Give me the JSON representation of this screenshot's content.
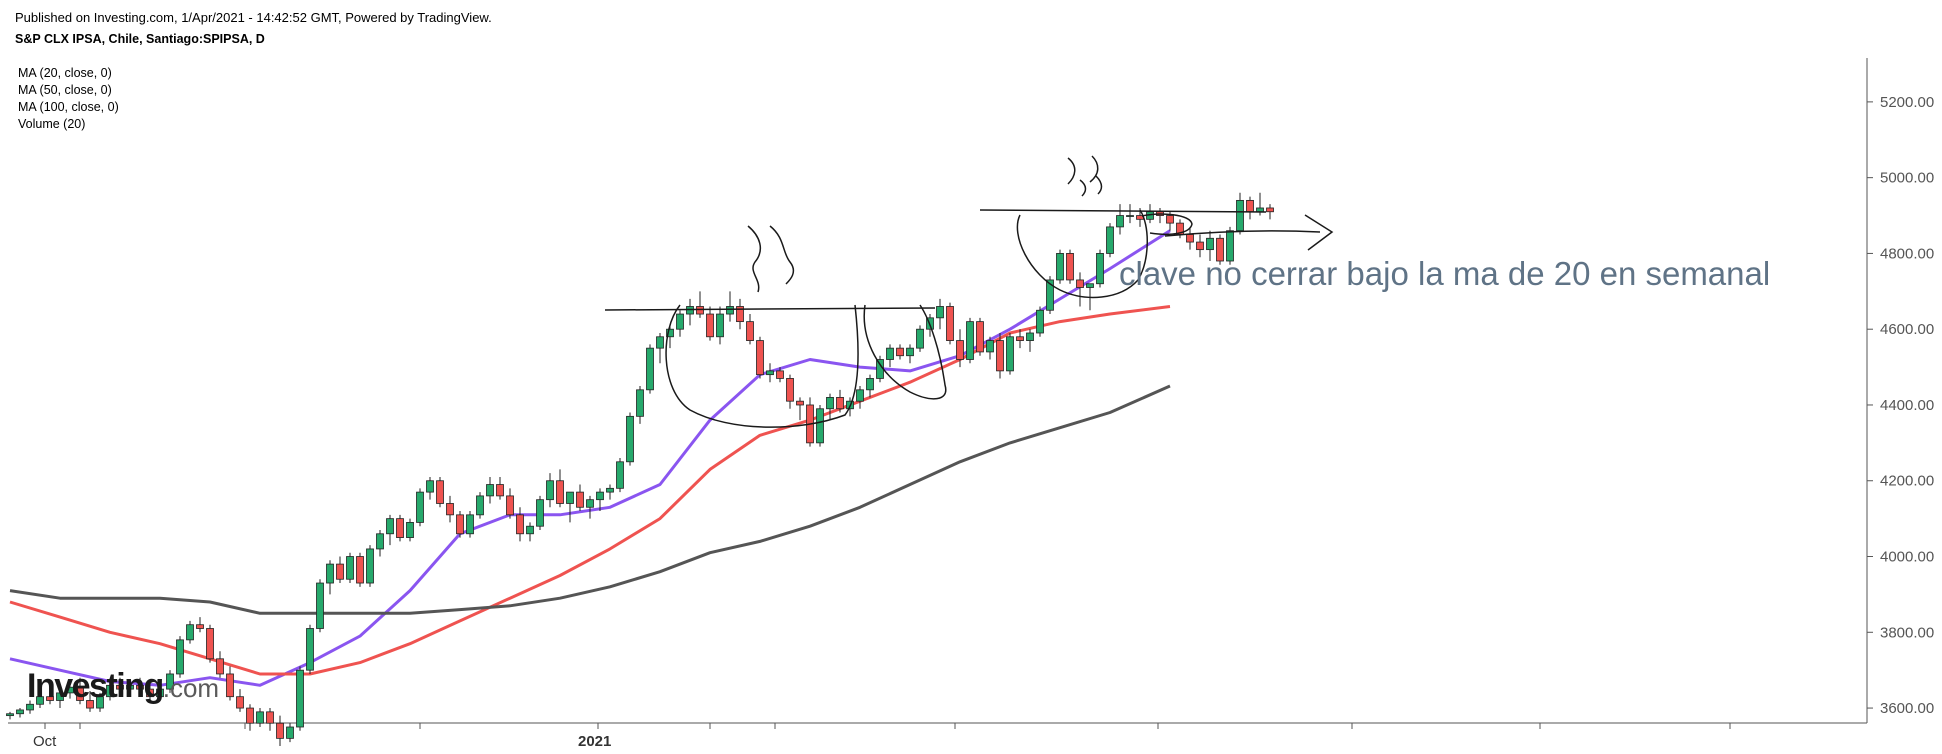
{
  "header": {
    "published": "Published on Investing.com, 1/Apr/2021 - 14:42:52 GMT, Powered by TradingView.",
    "symbol": "S&P CLX IPSA, Chile, Santiago:SPIPSA, D"
  },
  "legend": [
    "MA (20, close, 0)",
    "MA (50, close, 0)",
    "MA (100, close, 0)",
    "Volume (20)"
  ],
  "annotation_text": "clave no cerrar bajo la ma de 20 en semanal",
  "watermark": {
    "brand": "Investing",
    "suffix": ".com"
  },
  "colors": {
    "up": "#26a96c",
    "down": "#ef5350",
    "ma20": "#8a55f0",
    "ma50": "#ef5350",
    "ma100": "#555555",
    "annotation": "#5f7386"
  },
  "chart_data": {
    "type": "candlestick",
    "title": "S&P CLX IPSA, Chile, Santiago:SPIPSA, D",
    "ylim": [
      3550,
      5300
    ],
    "y_ticks": [
      3600,
      3800,
      4000,
      4200,
      4400,
      4600,
      4800,
      5000,
      5200
    ],
    "y_tick_labels": [
      "3600.00",
      "3800.00",
      "4000.00",
      "4200.00",
      "4400.00",
      "4600.00",
      "4800.00",
      "5000.00",
      "5200.00"
    ],
    "x_labels": [
      {
        "label": "Oct",
        "index": 3
      },
      {
        "label": "2021",
        "index": 66
      }
    ],
    "candles": [
      [
        3580,
        3590,
        3570,
        3585
      ],
      [
        3585,
        3600,
        3575,
        3595
      ],
      [
        3595,
        3620,
        3585,
        3610
      ],
      [
        3610,
        3640,
        3600,
        3630
      ],
      [
        3630,
        3660,
        3610,
        3620
      ],
      [
        3620,
        3650,
        3600,
        3640
      ],
      [
        3640,
        3670,
        3625,
        3655
      ],
      [
        3655,
        3680,
        3610,
        3620
      ],
      [
        3620,
        3645,
        3590,
        3600
      ],
      [
        3600,
        3640,
        3590,
        3630
      ],
      [
        3630,
        3670,
        3620,
        3660
      ],
      [
        3660,
        3680,
        3640,
        3650
      ],
      [
        3650,
        3670,
        3630,
        3660
      ],
      [
        3660,
        3680,
        3640,
        3650
      ],
      [
        3650,
        3670,
        3620,
        3630
      ],
      [
        3630,
        3660,
        3620,
        3650
      ],
      [
        3650,
        3700,
        3640,
        3690
      ],
      [
        3690,
        3790,
        3680,
        3780
      ],
      [
        3780,
        3830,
        3770,
        3820
      ],
      [
        3820,
        3840,
        3800,
        3810
      ],
      [
        3810,
        3820,
        3720,
        3730
      ],
      [
        3730,
        3750,
        3680,
        3690
      ],
      [
        3690,
        3710,
        3620,
        3630
      ],
      [
        3630,
        3650,
        3590,
        3600
      ],
      [
        3600,
        3610,
        3540,
        3560
      ],
      [
        3560,
        3600,
        3550,
        3590
      ],
      [
        3590,
        3600,
        3540,
        3560
      ],
      [
        3560,
        3580,
        3500,
        3520
      ],
      [
        3520,
        3560,
        3510,
        3550
      ],
      [
        3550,
        3710,
        3540,
        3700
      ],
      [
        3700,
        3820,
        3690,
        3810
      ],
      [
        3810,
        3940,
        3800,
        3930
      ],
      [
        3930,
        3990,
        3900,
        3980
      ],
      [
        3980,
        4000,
        3930,
        3940
      ],
      [
        3940,
        4010,
        3930,
        4000
      ],
      [
        4000,
        4010,
        3920,
        3930
      ],
      [
        3930,
        4030,
        3920,
        4020
      ],
      [
        4020,
        4070,
        4000,
        4060
      ],
      [
        4060,
        4110,
        4030,
        4100
      ],
      [
        4100,
        4110,
        4040,
        4050
      ],
      [
        4050,
        4100,
        4040,
        4090
      ],
      [
        4090,
        4180,
        4080,
        4170
      ],
      [
        4170,
        4210,
        4150,
        4200
      ],
      [
        4200,
        4210,
        4130,
        4140
      ],
      [
        4140,
        4160,
        4090,
        4110
      ],
      [
        4110,
        4120,
        4050,
        4060
      ],
      [
        4060,
        4120,
        4050,
        4110
      ],
      [
        4110,
        4170,
        4100,
        4160
      ],
      [
        4160,
        4210,
        4140,
        4190
      ],
      [
        4190,
        4210,
        4150,
        4160
      ],
      [
        4160,
        4180,
        4100,
        4110
      ],
      [
        4110,
        4130,
        4040,
        4060
      ],
      [
        4060,
        4090,
        4040,
        4080
      ],
      [
        4080,
        4160,
        4070,
        4150
      ],
      [
        4150,
        4220,
        4130,
        4200
      ],
      [
        4200,
        4230,
        4130,
        4140
      ],
      [
        4140,
        4160,
        4090,
        4170
      ],
      [
        4170,
        4190,
        4120,
        4130
      ],
      [
        4130,
        4160,
        4100,
        4150
      ],
      [
        4150,
        4180,
        4120,
        4170
      ],
      [
        4170,
        4190,
        4150,
        4180
      ],
      [
        4180,
        4260,
        4170,
        4250
      ],
      [
        4250,
        4380,
        4240,
        4370
      ],
      [
        4370,
        4450,
        4350,
        4440
      ],
      [
        4440,
        4560,
        4430,
        4550
      ],
      [
        4550,
        4590,
        4510,
        4580
      ],
      [
        4580,
        4610,
        4550,
        4600
      ],
      [
        4600,
        4650,
        4580,
        4640
      ],
      [
        4640,
        4680,
        4610,
        4660
      ],
      [
        4660,
        4700,
        4630,
        4640
      ],
      [
        4640,
        4660,
        4570,
        4580
      ],
      [
        4580,
        4660,
        4560,
        4640
      ],
      [
        4640,
        4700,
        4620,
        4660
      ],
      [
        4660,
        4680,
        4600,
        4620
      ],
      [
        4620,
        4640,
        4560,
        4570
      ],
      [
        4570,
        4580,
        4470,
        4480
      ],
      [
        4480,
        4510,
        4460,
        4490
      ],
      [
        4490,
        4500,
        4460,
        4470
      ],
      [
        4470,
        4480,
        4390,
        4410
      ],
      [
        4410,
        4420,
        4360,
        4400
      ],
      [
        4400,
        4420,
        4290,
        4300
      ],
      [
        4300,
        4400,
        4290,
        4390
      ],
      [
        4390,
        4430,
        4360,
        4420
      ],
      [
        4420,
        4440,
        4380,
        4390
      ],
      [
        4390,
        4420,
        4370,
        4410
      ],
      [
        4410,
        4450,
        4390,
        4440
      ],
      [
        4440,
        4480,
        4420,
        4470
      ],
      [
        4470,
        4530,
        4460,
        4520
      ],
      [
        4520,
        4560,
        4500,
        4550
      ],
      [
        4550,
        4560,
        4520,
        4530
      ],
      [
        4530,
        4560,
        4510,
        4550
      ],
      [
        4550,
        4610,
        4540,
        4600
      ],
      [
        4600,
        4640,
        4580,
        4630
      ],
      [
        4630,
        4680,
        4600,
        4660
      ],
      [
        4660,
        4670,
        4560,
        4570
      ],
      [
        4570,
        4600,
        4500,
        4520
      ],
      [
        4520,
        4630,
        4510,
        4620
      ],
      [
        4620,
        4630,
        4530,
        4540
      ],
      [
        4540,
        4580,
        4520,
        4570
      ],
      [
        4570,
        4590,
        4470,
        4490
      ],
      [
        4490,
        4590,
        4480,
        4580
      ],
      [
        4580,
        4600,
        4550,
        4570
      ],
      [
        4570,
        4600,
        4540,
        4590
      ],
      [
        4590,
        4660,
        4580,
        4650
      ],
      [
        4650,
        4740,
        4640,
        4730
      ],
      [
        4730,
        4810,
        4720,
        4800
      ],
      [
        4800,
        4810,
        4720,
        4730
      ],
      [
        4730,
        4750,
        4660,
        4710
      ],
      [
        4710,
        4720,
        4650,
        4720
      ],
      [
        4720,
        4810,
        4710,
        4800
      ],
      [
        4800,
        4880,
        4790,
        4870
      ],
      [
        4870,
        4930,
        4850,
        4900
      ],
      [
        4900,
        4930,
        4880,
        4900
      ],
      [
        4900,
        4920,
        4870,
        4890
      ],
      [
        4890,
        4930,
        4880,
        4910
      ],
      [
        4910,
        4920,
        4880,
        4900
      ],
      [
        4900,
        4910,
        4860,
        4880
      ],
      [
        4880,
        4890,
        4840,
        4850
      ],
      [
        4850,
        4870,
        4810,
        4830
      ],
      [
        4830,
        4850,
        4790,
        4810
      ],
      [
        4810,
        4860,
        4780,
        4840
      ],
      [
        4840,
        4850,
        4770,
        4780
      ],
      [
        4780,
        4870,
        4770,
        4860
      ],
      [
        4860,
        4960,
        4850,
        4940
      ],
      [
        4940,
        4950,
        4890,
        4910
      ],
      [
        4910,
        4960,
        4900,
        4920
      ],
      [
        4920,
        4930,
        4890,
        4910
      ]
    ],
    "moving_averages": [
      {
        "name": "MA (20, close, 0)",
        "x": [
          0,
          5,
          10,
          15,
          20,
          25,
          30,
          35,
          40,
          45,
          50,
          55,
          60,
          65,
          70,
          75,
          80,
          85,
          90,
          95,
          100,
          105,
          110,
          116
        ],
        "values": [
          3730,
          3700,
          3670,
          3660,
          3680,
          3660,
          3720,
          3790,
          3910,
          4060,
          4110,
          4110,
          4130,
          4190,
          4360,
          4480,
          4520,
          4500,
          4490,
          4530,
          4600,
          4680,
          4760,
          4860
        ]
      },
      {
        "name": "MA (50, close, 0)",
        "x": [
          0,
          5,
          10,
          15,
          20,
          25,
          30,
          35,
          40,
          45,
          50,
          55,
          60,
          65,
          70,
          75,
          80,
          85,
          90,
          95,
          100,
          105,
          110,
          116
        ],
        "values": [
          3880,
          3840,
          3800,
          3770,
          3730,
          3690,
          3690,
          3720,
          3770,
          3830,
          3890,
          3950,
          4020,
          4100,
          4230,
          4320,
          4360,
          4410,
          4460,
          4520,
          4590,
          4620,
          4640,
          4660
        ]
      },
      {
        "name": "MA (100, close, 0)",
        "x": [
          0,
          5,
          10,
          15,
          20,
          25,
          30,
          35,
          40,
          45,
          50,
          55,
          60,
          65,
          70,
          75,
          80,
          85,
          90,
          95,
          100,
          105,
          110,
          116
        ],
        "values": [
          3910,
          3890,
          3890,
          3890,
          3880,
          3850,
          3850,
          3850,
          3850,
          3860,
          3870,
          3890,
          3920,
          3960,
          4010,
          4040,
          4080,
          4130,
          4190,
          4250,
          4300,
          4340,
          4380,
          4450
        ]
      }
    ],
    "resistance_levels": [
      {
        "value": 4655,
        "from": 64,
        "to": 104
      },
      {
        "value": 4925,
        "from": 108,
        "to": 134
      }
    ]
  }
}
